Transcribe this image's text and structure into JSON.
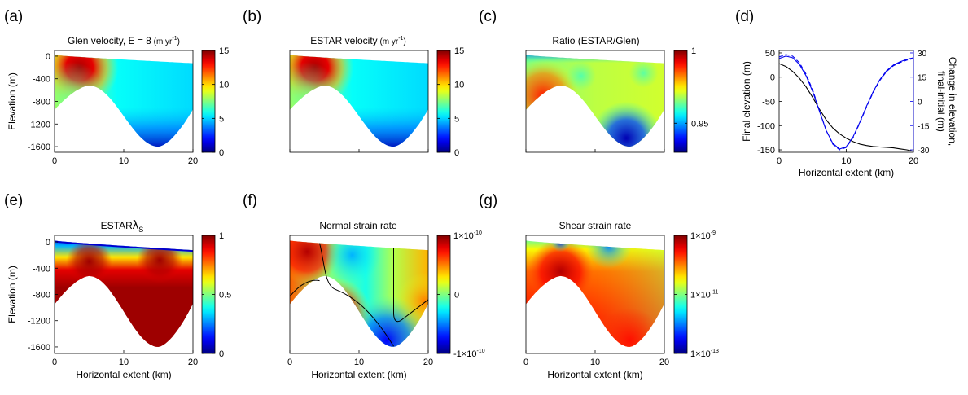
{
  "chart_data": [
    {
      "type": "heatmap",
      "panel": "(a)",
      "title": "Glen velocity, E = 8",
      "title_unit": "(m yr",
      "title_unit_exp": "-1",
      "title_unit_end": ")",
      "ylabel": "Elevation (m)",
      "xlabel": "",
      "xlim": [
        0,
        20
      ],
      "ylim": [
        -1700,
        100
      ],
      "xticks": [
        "0",
        "10",
        "20"
      ],
      "yticks": [
        {
          "v": 0,
          "l": "0"
        },
        {
          "v": -400,
          "l": "-400"
        },
        {
          "v": -800,
          "l": "-800"
        },
        {
          "v": -1200,
          "l": "-1200"
        },
        {
          "v": -1600,
          "l": "-1600"
        }
      ],
      "colorbar": {
        "min": 0,
        "max": 15,
        "ticks": [
          {
            "v": 15,
            "l": "15"
          },
          {
            "v": 10,
            "l": "10"
          },
          {
            "v": 5,
            "l": "5"
          },
          {
            "v": 0,
            "l": "0"
          }
        ]
      }
    },
    {
      "type": "heatmap",
      "panel": "(b)",
      "title": "ESTAR velocity",
      "title_unit": "(m yr",
      "title_unit_exp": "-1",
      "title_unit_end": ")",
      "xlim": [
        0,
        20
      ],
      "ylim": [
        -1700,
        100
      ],
      "xticks": [],
      "yticks": [],
      "colorbar": {
        "min": 0,
        "max": 15,
        "ticks": [
          {
            "v": 15,
            "l": "15"
          },
          {
            "v": 10,
            "l": "10"
          },
          {
            "v": 5,
            "l": "5"
          },
          {
            "v": 0,
            "l": "0"
          }
        ]
      }
    },
    {
      "type": "heatmap",
      "panel": "(c)",
      "title": "Ratio (ESTAR/Glen)",
      "xlim": [
        0,
        20
      ],
      "ylim": [
        -1700,
        100
      ],
      "xticks": [],
      "yticks": [],
      "colorbar": {
        "min": 0.93,
        "max": 1.0,
        "ticks": [
          {
            "v": 1.0,
            "l": "1"
          },
          {
            "v": 0.95,
            "l": "0.95"
          }
        ]
      }
    },
    {
      "type": "line",
      "panel": "(d)",
      "xlabel": "Horizontal extent (km)",
      "ylabel": "Final elevation (m)",
      "y2label_line1": "Change in elevation,",
      "y2label_line2": "final-initial (m)",
      "xlim": [
        0,
        20
      ],
      "ylim": [
        -155,
        55
      ],
      "y2lim": [
        -31.5,
        31.5
      ],
      "xticks": [
        "0",
        "10",
        "20"
      ],
      "yticks": [
        {
          "v": 50,
          "l": "50"
        },
        {
          "v": 0,
          "l": "0"
        },
        {
          "v": -50,
          "l": "-50"
        },
        {
          "v": -100,
          "l": "-100"
        },
        {
          "v": -150,
          "l": "-150"
        }
      ],
      "y2ticks": [
        {
          "v": 30,
          "l": "30"
        },
        {
          "v": 15,
          "l": "15"
        },
        {
          "v": 0,
          "l": "0"
        },
        {
          "v": -15,
          "l": "-15"
        },
        {
          "v": -30,
          "l": "-30"
        }
      ],
      "colors": {
        "left": "#000000",
        "right": "#0000ee"
      },
      "series": [
        {
          "axis": "left",
          "color": "#000000",
          "dash": "",
          "x": [
            0,
            1,
            2,
            3,
            4,
            5,
            6,
            7,
            8,
            9,
            10,
            11,
            12,
            13,
            14,
            15,
            16,
            17,
            18,
            19,
            20
          ],
          "y": [
            28,
            22,
            12,
            -2,
            -20,
            -42,
            -66,
            -88,
            -105,
            -117,
            -126,
            -133,
            -138,
            -141,
            -143,
            -144,
            -145,
            -146,
            -148,
            -150,
            -153
          ]
        },
        {
          "axis": "right",
          "color": "#0000ee",
          "dash": "",
          "x": [
            0,
            1,
            2,
            3,
            4,
            5,
            6,
            7,
            8,
            9,
            10,
            11,
            12,
            13,
            14,
            15,
            16,
            17,
            18,
            19,
            20
          ],
          "y": [
            26.5,
            28,
            27,
            23,
            16,
            6,
            -6,
            -18,
            -26,
            -29.5,
            -28,
            -22,
            -13,
            -3,
            6,
            13.5,
            19,
            22.5,
            24.5,
            26,
            27
          ]
        },
        {
          "axis": "right",
          "color": "#0000ee",
          "dash": "5 3",
          "x": [
            0,
            1,
            2,
            3,
            4,
            5,
            6,
            7,
            8,
            9,
            10,
            11,
            12,
            13,
            14,
            15,
            16,
            17,
            18,
            19,
            20
          ],
          "y": [
            27.5,
            29,
            28,
            24,
            17,
            7,
            -5.5,
            -18,
            -26.5,
            -30,
            -28.5,
            -22.5,
            -13.5,
            -3.5,
            5.5,
            13,
            18.5,
            22,
            24,
            25.5,
            26.5
          ]
        }
      ]
    },
    {
      "type": "heatmap",
      "panel": "(e)",
      "title": "ESTAR",
      "title_sym": "λ",
      "title_sub": "S",
      "xlabel": "Horizontal extent (km)",
      "ylabel": "Elevation (m)",
      "xlim": [
        0,
        20
      ],
      "ylim": [
        -1700,
        100
      ],
      "xticks": [
        "0",
        "10",
        "20"
      ],
      "yticks": [
        {
          "v": 0,
          "l": "0"
        },
        {
          "v": -400,
          "l": "-400"
        },
        {
          "v": -800,
          "l": "-800"
        },
        {
          "v": -1200,
          "l": "-1200"
        },
        {
          "v": -1600,
          "l": "-1600"
        }
      ],
      "colorbar": {
        "min": 0,
        "max": 1,
        "ticks": [
          {
            "v": 1,
            "l": "1"
          },
          {
            "v": 0.5,
            "l": "0.5"
          },
          {
            "v": 0,
            "l": "0"
          }
        ]
      }
    },
    {
      "type": "heatmap",
      "panel": "(f)",
      "title": "Normal strain rate",
      "xlabel": "Horizontal extent (km)",
      "xlim": [
        0,
        20
      ],
      "ylim": [
        -1700,
        100
      ],
      "xticks": [
        "0",
        "10",
        "20"
      ],
      "yticks": [],
      "colorbar": {
        "min": -1,
        "max": 1,
        "ticks": [
          {
            "v": 1,
            "m": "1",
            "e": "10",
            "x": "-10"
          },
          {
            "v": 0,
            "l": "0"
          },
          {
            "v": -1,
            "m": "-1",
            "e": "10",
            "x": "-10"
          }
        ]
      }
    },
    {
      "type": "heatmap",
      "panel": "(g)",
      "title": "Shear strain rate",
      "xlabel": "Horizontal extent (km)",
      "xlim": [
        0,
        20
      ],
      "ylim": [
        -1700,
        100
      ],
      "xticks": [
        "0",
        "10",
        "20"
      ],
      "yticks": [],
      "colorbar": {
        "min": -13,
        "max": -9,
        "ticks": [
          {
            "v": -9,
            "m": "1",
            "e": "10",
            "x": "-9"
          },
          {
            "v": -11,
            "m": "1",
            "e": "10",
            "x": "-11"
          },
          {
            "v": -13,
            "m": "1",
            "e": "10",
            "x": "-13"
          }
        ]
      }
    }
  ]
}
